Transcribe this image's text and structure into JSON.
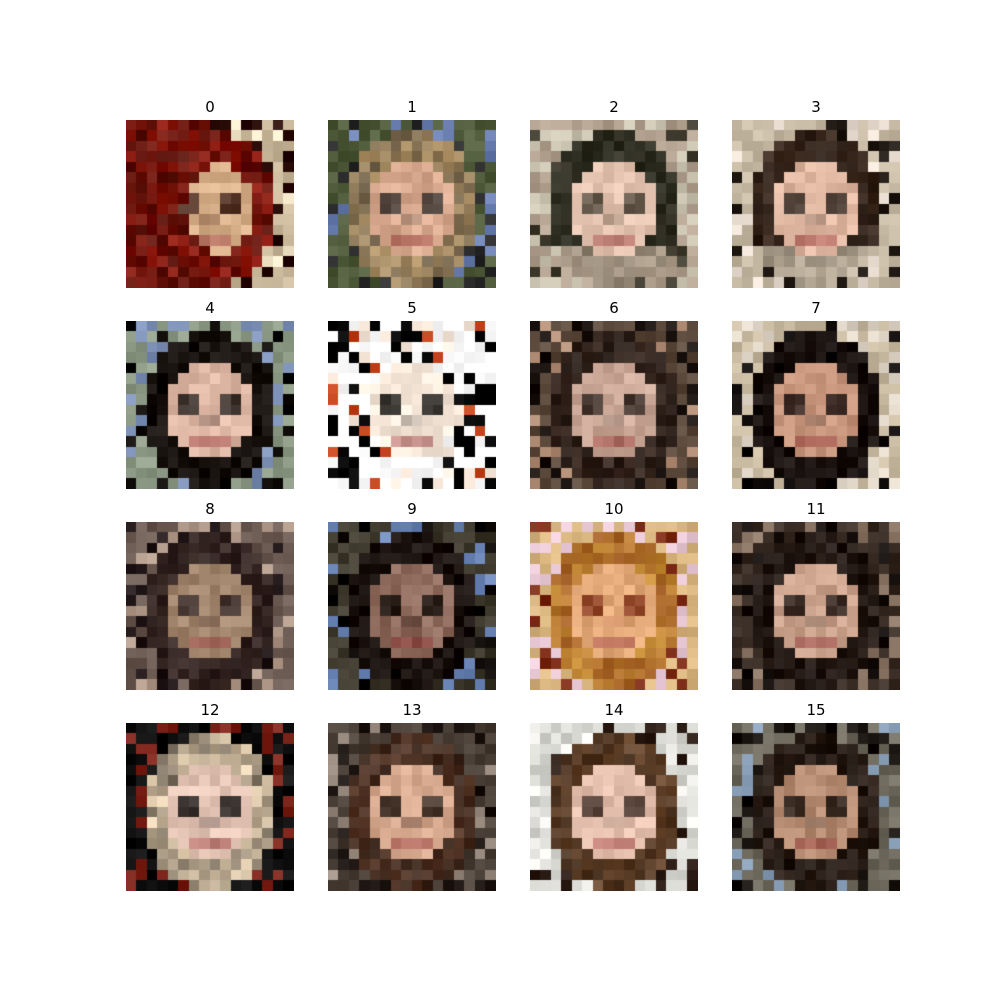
{
  "panels": [
    {
      "title": "0",
      "palette": {
        "bg": "#c9b79a",
        "skin": "#d8b08a",
        "hair": "#8f1a0f",
        "dark": "#2a0d08",
        "accent": "#f3e6c9"
      },
      "style": "red-hair"
    },
    {
      "title": "1",
      "palette": {
        "bg": "#4f5a3a",
        "skin": "#d8a98e",
        "hair": "#b79a6d",
        "dark": "#2b2a2a",
        "accent": "#6a7fb0"
      },
      "style": "blonde"
    },
    {
      "title": "2",
      "palette": {
        "bg": "#b0a08d",
        "skin": "#e2c2ae",
        "hair": "#2a2a1f",
        "dark": "#3f3b2e",
        "accent": "#c9c3b0"
      },
      "style": "dark-short"
    },
    {
      "title": "3",
      "palette": {
        "bg": "#c6b9a4",
        "skin": "#dfb6a0",
        "hair": "#3d2b20",
        "dark": "#1e1712",
        "accent": "#e8ddd0"
      },
      "style": "dark-short"
    },
    {
      "title": "4",
      "palette": {
        "bg": "#8d9a86",
        "skin": "#e0b8a6",
        "hair": "#1a1410",
        "dark": "#0d0a08",
        "accent": "#7c8fb5"
      },
      "style": "dark-long"
    },
    {
      "title": "5",
      "palette": {
        "bg": "#ffffff",
        "skin": "#f6e6d8",
        "hair": "#0a0808",
        "dark": "#000000",
        "accent": "#c0411a"
      },
      "style": "white"
    },
    {
      "title": "6",
      "palette": {
        "bg": "#5c4a3c",
        "skin": "#caa796",
        "hair": "#3a2a22",
        "dark": "#1c1512",
        "accent": "#b08c74"
      },
      "style": "dark-long"
    },
    {
      "title": "7",
      "palette": {
        "bg": "#c7b8a0",
        "skin": "#c5937a",
        "hair": "#1c1310",
        "dark": "#0f0b0a",
        "accent": "#e0d6c8"
      },
      "style": "hat"
    },
    {
      "title": "8",
      "palette": {
        "bg": "#6a5a52",
        "skin": "#a3866e",
        "hair": "#3b2b27",
        "dark": "#24191a",
        "accent": "#b09888"
      },
      "style": "brown"
    },
    {
      "title": "9",
      "palette": {
        "bg": "#3f3a2e",
        "skin": "#8e6a5c",
        "hair": "#1d130f",
        "dark": "#0c0806",
        "accent": "#6c86b8"
      },
      "style": "dark-side"
    },
    {
      "title": "10",
      "palette": {
        "bg": "#d8b47e",
        "skin": "#e2a877",
        "hair": "#c9913a",
        "dark": "#7a2a14",
        "accent": "#e6c6d2"
      },
      "style": "blonde"
    },
    {
      "title": "11",
      "palette": {
        "bg": "#3a2e26",
        "skin": "#caa28c",
        "hair": "#2a1e18",
        "dark": "#120c0a",
        "accent": "#8a7565"
      },
      "style": "dark-long"
    },
    {
      "title": "12",
      "palette": {
        "bg": "#101010",
        "skin": "#e6c6b6",
        "hair": "#e8d3b4",
        "dark": "#050505",
        "accent": "#7a2218"
      },
      "style": "white-hair"
    },
    {
      "title": "13",
      "palette": {
        "bg": "#4a4038",
        "skin": "#d6a88e",
        "hair": "#5a3a2a",
        "dark": "#1e1612",
        "accent": "#9a8c80"
      },
      "style": "brown"
    },
    {
      "title": "14",
      "palette": {
        "bg": "#d7d7d2",
        "skin": "#e6c0ae",
        "hair": "#6b4a30",
        "dark": "#2a1c14",
        "accent": "#f0eeea"
      },
      "style": "light-bg"
    },
    {
      "title": "15",
      "palette": {
        "bg": "#6f6a5e",
        "skin": "#b58c72",
        "hair": "#2e211a",
        "dark": "#15100c",
        "accent": "#8aa0b8"
      },
      "style": "brown"
    }
  ]
}
